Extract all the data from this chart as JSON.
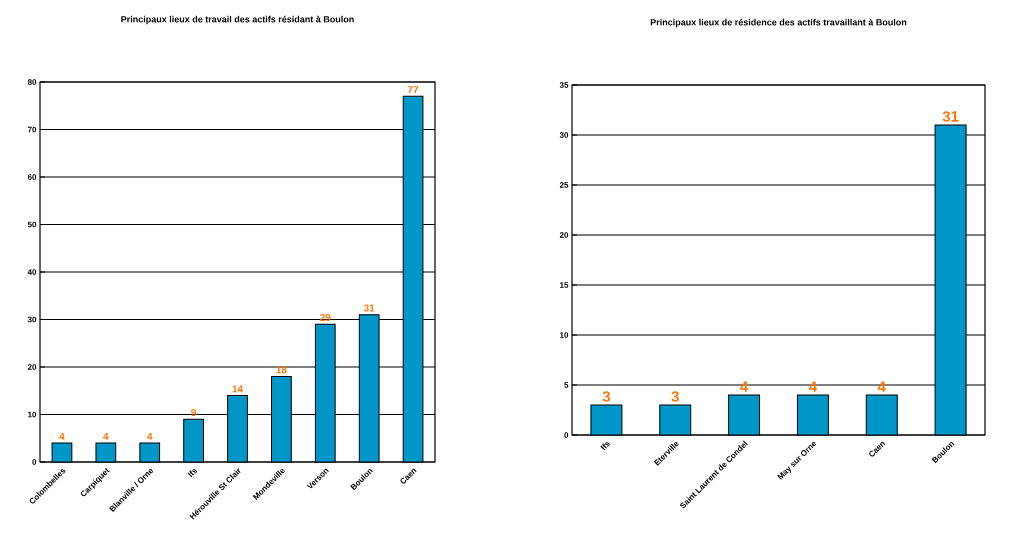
{
  "chart_data": [
    {
      "type": "bar",
      "title": "Principaux lieux de travail des actifs résidant à Boulon",
      "categories": [
        "Colombelles",
        "Carpiquet",
        "Blanville / Orne",
        "Ifs",
        "Hérouville St Clair",
        "Mondeville",
        "Verson",
        "Boulon",
        "Caen"
      ],
      "values": [
        4,
        4,
        4,
        9,
        14,
        18,
        29,
        31,
        77
      ],
      "color": "#0096c8",
      "ylim": [
        0,
        80
      ],
      "yticks": [
        0,
        10,
        20,
        30,
        40,
        50,
        60,
        70,
        80
      ],
      "grid": "y",
      "data_labels": true
    },
    {
      "type": "bar",
      "title": "Principaux lieux de résidence des actifs travaillant à Boulon",
      "categories": [
        "Ifs",
        "Eterville",
        "Saint Laurent de Condel",
        "May sur Orne",
        "Caen",
        "Boulon"
      ],
      "values": [
        3,
        3,
        4,
        4,
        4,
        31
      ],
      "color": "#0096c8",
      "ylim": [
        0,
        35
      ],
      "yticks": [
        0,
        5,
        10,
        15,
        20,
        25,
        30,
        35
      ],
      "grid": "y",
      "data_labels": true
    }
  ]
}
